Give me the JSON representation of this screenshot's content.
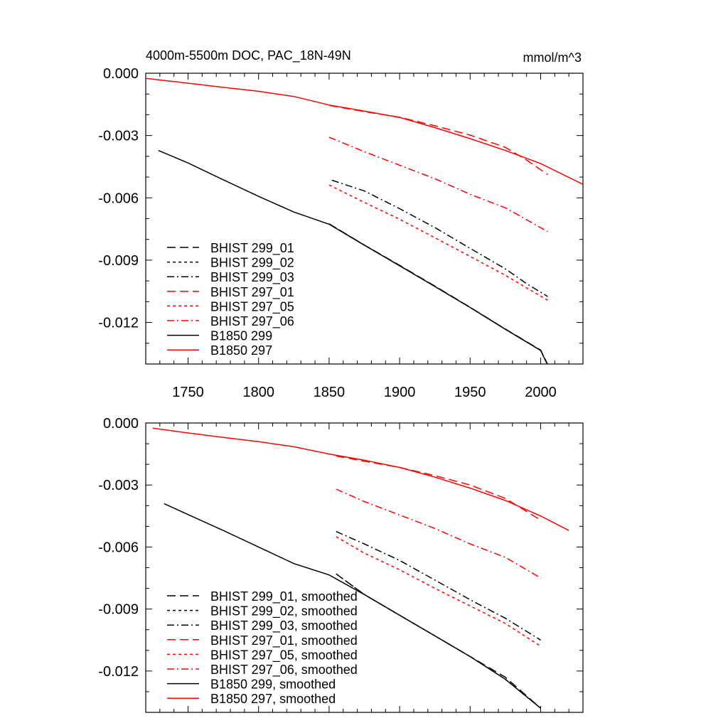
{
  "title_left": "4000m-5500m DOC, PAC_18N-49N",
  "title_right": "mmol/m^3",
  "colors": {
    "black": "#000000",
    "red": "#ff0000"
  },
  "chart_data": [
    {
      "type": "line",
      "xlim": [
        1720,
        2030
      ],
      "ylim": [
        -0.014,
        0.0
      ],
      "y_ticks": [
        0.0,
        -0.003,
        -0.006,
        -0.009,
        -0.012
      ],
      "y_tick_labels": [
        "0.000",
        "-0.003",
        "-0.006",
        "-0.009",
        "-0.012"
      ],
      "x_ticks": [
        1750,
        1800,
        1850,
        1900,
        1950,
        2000
      ],
      "x_tick_labels": [
        "1750",
        "1800",
        "1850",
        "1900",
        "1950",
        "2000"
      ],
      "legend_position": "bottom-left",
      "series": [
        {
          "name": "BHIST 299_01",
          "color": "#000000",
          "dash": "longdash",
          "points": [
            [
              1850,
              -0.00725
            ],
            [
              1875,
              -0.00827
            ],
            [
              1900,
              -0.00925
            ],
            [
              1925,
              -0.01025
            ],
            [
              1950,
              -0.01127
            ],
            [
              1975,
              -0.01232
            ],
            [
              2000,
              -0.01333
            ],
            [
              2005,
              -0.01402
            ]
          ]
        },
        {
          "name": "BHIST 299_02",
          "color": "#000000",
          "dash": "shortdash",
          "points": [
            [
              1850,
              -0.00725
            ],
            [
              1875,
              -0.00828
            ],
            [
              1900,
              -0.00927
            ],
            [
              1925,
              -0.01027
            ],
            [
              1950,
              -0.01128
            ],
            [
              1975,
              -0.01233
            ],
            [
              2000,
              -0.01335
            ],
            [
              2005,
              -0.01405
            ]
          ]
        },
        {
          "name": "BHIST 299_03",
          "color": "#000000",
          "dash": "dashdot",
          "points": [
            [
              1852,
              -0.00515
            ],
            [
              1875,
              -0.00567
            ],
            [
              1900,
              -0.00652
            ],
            [
              1925,
              -0.00743
            ],
            [
              1950,
              -0.00843
            ],
            [
              1975,
              -0.00942
            ],
            [
              1990,
              -0.01013
            ],
            [
              2005,
              -0.01075
            ]
          ]
        },
        {
          "name": "BHIST 297_01",
          "color": "#ff0000",
          "dash": "longdash",
          "points": [
            [
              1850,
              -0.00155
            ],
            [
              1875,
              -0.00185
            ],
            [
              1900,
              -0.00212
            ],
            [
              1925,
              -0.00253
            ],
            [
              1950,
              -0.00298
            ],
            [
              1975,
              -0.00357
            ],
            [
              1990,
              -0.00418
            ],
            [
              2005,
              -0.00488
            ]
          ]
        },
        {
          "name": "BHIST 297_05",
          "color": "#ff0000",
          "dash": "shortdash",
          "points": [
            [
              1850,
              -0.00538
            ],
            [
              1875,
              -0.00622
            ],
            [
              1900,
              -0.00703
            ],
            [
              1925,
              -0.00792
            ],
            [
              1950,
              -0.00882
            ],
            [
              1975,
              -0.00973
            ],
            [
              1990,
              -0.01033
            ],
            [
              2005,
              -0.01093
            ]
          ]
        },
        {
          "name": "BHIST 297_06",
          "color": "#ff0000",
          "dash": "dashdot",
          "points": [
            [
              1850,
              -0.00308
            ],
            [
              1875,
              -0.00378
            ],
            [
              1900,
              -0.00443
            ],
            [
              1925,
              -0.00508
            ],
            [
              1950,
              -0.00583
            ],
            [
              1975,
              -0.00648
            ],
            [
              1990,
              -0.00705
            ],
            [
              2005,
              -0.00763
            ]
          ]
        },
        {
          "name": "B1850 299",
          "color": "#000000",
          "dash": "solid",
          "points": [
            [
              1729,
              -0.00372
            ],
            [
              1750,
              -0.00432
            ],
            [
              1775,
              -0.00513
            ],
            [
              1800,
              -0.00593
            ],
            [
              1825,
              -0.00668
            ],
            [
              1850,
              -0.00727
            ],
            [
              1875,
              -0.00828
            ],
            [
              1900,
              -0.00927
            ],
            [
              1925,
              -0.01027
            ],
            [
              1950,
              -0.01128
            ],
            [
              1975,
              -0.01233
            ],
            [
              2000,
              -0.01335
            ],
            [
              2005,
              -0.01405
            ]
          ]
        },
        {
          "name": "B1850 297",
          "color": "#ff0000",
          "dash": "solid",
          "points": [
            [
              1720,
              -0.00025
            ],
            [
              1750,
              -0.00048
            ],
            [
              1775,
              -0.00068
            ],
            [
              1800,
              -0.00087
            ],
            [
              1825,
              -0.00112
            ],
            [
              1850,
              -0.00153
            ],
            [
              1875,
              -0.00182
            ],
            [
              1900,
              -0.00213
            ],
            [
              1925,
              -0.00262
            ],
            [
              1950,
              -0.00315
            ],
            [
              1975,
              -0.00372
            ],
            [
              2000,
              -0.00435
            ],
            [
              2030,
              -0.00535
            ]
          ]
        }
      ]
    },
    {
      "type": "line",
      "xlim": [
        1720,
        2030
      ],
      "ylim": [
        -0.014,
        0.0
      ],
      "y_ticks": [
        0.0,
        -0.003,
        -0.006,
        -0.009,
        -0.012
      ],
      "y_tick_labels": [
        "0.000",
        "-0.003",
        "-0.006",
        "-0.009",
        "-0.012"
      ],
      "x_ticks": [
        1750,
        1800,
        1850,
        1900,
        1950,
        2000
      ],
      "legend_position": "bottom-left",
      "series": [
        {
          "name": "BHIST 299_01, smoothed",
          "color": "#000000",
          "dash": "longdash",
          "points": [
            [
              1855,
              -0.0073
            ],
            [
              1875,
              -0.0083
            ],
            [
              1900,
              -0.0093
            ],
            [
              1925,
              -0.0103
            ],
            [
              1950,
              -0.0113
            ],
            [
              1975,
              -0.0123
            ],
            [
              2000,
              -0.0138
            ]
          ]
        },
        {
          "name": "BHIST 299_02, smoothed",
          "color": "#000000",
          "dash": "shortdash",
          "points": [
            [
              1855,
              -0.0073
            ],
            [
              1875,
              -0.0083
            ],
            [
              1900,
              -0.0093
            ],
            [
              1925,
              -0.0103
            ],
            [
              1950,
              -0.0113
            ],
            [
              1975,
              -0.0124
            ],
            [
              2000,
              -0.0138
            ]
          ]
        },
        {
          "name": "BHIST 299_03, smoothed",
          "color": "#000000",
          "dash": "dashdot",
          "points": [
            [
              1855,
              -0.00525
            ],
            [
              1875,
              -0.00585
            ],
            [
              1900,
              -0.00665
            ],
            [
              1925,
              -0.0076
            ],
            [
              1950,
              -0.00855
            ],
            [
              1975,
              -0.00945
            ],
            [
              2000,
              -0.0105
            ]
          ]
        },
        {
          "name": "BHIST 297_01, smoothed",
          "color": "#ff0000",
          "dash": "longdash",
          "points": [
            [
              1855,
              -0.0016
            ],
            [
              1875,
              -0.00185
            ],
            [
              1900,
              -0.00215
            ],
            [
              1925,
              -0.00255
            ],
            [
              1950,
              -0.003
            ],
            [
              1975,
              -0.00365
            ],
            [
              2000,
              -0.0047
            ]
          ]
        },
        {
          "name": "BHIST 297_05, smoothed",
          "color": "#ff0000",
          "dash": "shortdash",
          "points": [
            [
              1855,
              -0.0055
            ],
            [
              1875,
              -0.0063
            ],
            [
              1900,
              -0.0071
            ],
            [
              1925,
              -0.008
            ],
            [
              1950,
              -0.00885
            ],
            [
              1975,
              -0.0097
            ],
            [
              2000,
              -0.0108
            ]
          ]
        },
        {
          "name": "BHIST 297_06, smoothed",
          "color": "#ff0000",
          "dash": "dashdot",
          "points": [
            [
              1855,
              -0.0032
            ],
            [
              1875,
              -0.0038
            ],
            [
              1900,
              -0.00445
            ],
            [
              1925,
              -0.0051
            ],
            [
              1950,
              -0.00585
            ],
            [
              1975,
              -0.0065
            ],
            [
              2000,
              -0.0075
            ]
          ]
        },
        {
          "name": "B1850 299, smoothed",
          "color": "#000000",
          "dash": "solid",
          "points": [
            [
              1733,
              -0.0039
            ],
            [
              1750,
              -0.00443
            ],
            [
              1775,
              -0.0052
            ],
            [
              1800,
              -0.006
            ],
            [
              1825,
              -0.0068
            ],
            [
              1850,
              -0.00735
            ],
            [
              1875,
              -0.0083
            ],
            [
              1900,
              -0.0093
            ],
            [
              1925,
              -0.0103
            ],
            [
              1950,
              -0.0113
            ],
            [
              1975,
              -0.0124
            ],
            [
              2000,
              -0.0138
            ]
          ]
        },
        {
          "name": "B1850 297, smoothed",
          "color": "#ff0000",
          "dash": "solid",
          "points": [
            [
              1725,
              -0.00025
            ],
            [
              1750,
              -0.00048
            ],
            [
              1775,
              -0.0007
            ],
            [
              1800,
              -0.0009
            ],
            [
              1825,
              -0.00115
            ],
            [
              1850,
              -0.0015
            ],
            [
              1875,
              -0.0018
            ],
            [
              1900,
              -0.00215
            ],
            [
              1925,
              -0.00262
            ],
            [
              1950,
              -0.00315
            ],
            [
              1975,
              -0.00375
            ],
            [
              2000,
              -0.0045
            ],
            [
              2020,
              -0.0052
            ]
          ]
        }
      ]
    }
  ]
}
